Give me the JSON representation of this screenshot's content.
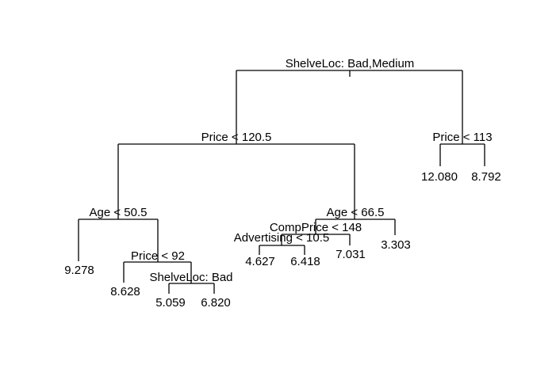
{
  "tree": {
    "splits": {
      "root": "ShelveLoc: Bad,Medium",
      "left": "Price < 120.5",
      "right": "Price < 113",
      "ll": "Age < 50.5",
      "lr": "Age < 66.5",
      "llr": "Price < 92",
      "llrr": "ShelveLoc: Bad",
      "lrl": "CompPrice < 148",
      "lrll": "Advertising < 10.5"
    },
    "leaves": {
      "lll": "9.278",
      "llrl": "8.628",
      "llrrl": "5.059",
      "llrrr": "6.820",
      "lrlll": "4.627",
      "lrllr": "6.418",
      "lrlr": "7.031",
      "lrr": "3.303",
      "rl": "12.080",
      "rr": "8.792"
    }
  }
}
